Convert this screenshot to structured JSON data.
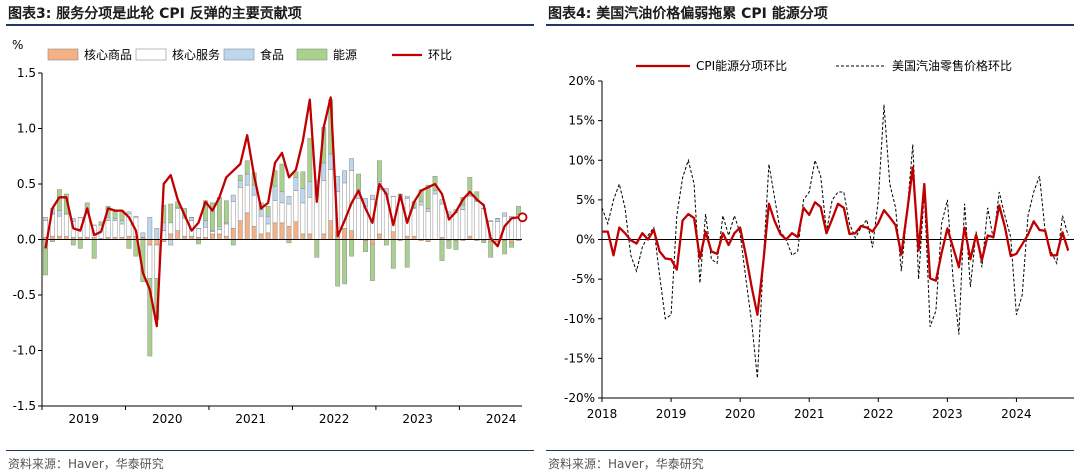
{
  "charts": [
    {
      "title": "图表3:  服务分项是此轮 CPI 反弹的主要贡献项",
      "source": "资料来源：Haver，华泰研究"
    },
    {
      "title": "图表4:  美国汽油价格偏弱拖累 CPI 能源分项",
      "source": "资料来源：Haver，华泰研究"
    }
  ],
  "colors": {
    "core_goods": "#f4b183",
    "core_services": "#ffffff",
    "food": "#bdd7ee",
    "energy": "#a9d18e",
    "headline": "#c00000",
    "gasoline": "#000000",
    "title_rule": "#1f3864"
  },
  "chart_data": [
    {
      "type": "bar",
      "stacked": true,
      "unit_label": "%",
      "ylim": [
        -1.5,
        1.5
      ],
      "yticks": [
        "1.5",
        "1.0",
        "0.5",
        "0.0",
        "-0.5",
        "-1.0",
        "-1.5"
      ],
      "ytick_values": [
        1.5,
        1.0,
        0.5,
        0.0,
        -0.5,
        -1.0,
        -1.5
      ],
      "xtick_labels": [
        "2019",
        "2020",
        "2021",
        "2022",
        "2023",
        "2024"
      ],
      "x_start": "2019-01",
      "months": 69,
      "legend_position": "top",
      "series": [
        {
          "name": "核心商品",
          "kind": "bar",
          "values": [
            0.02,
            0.03,
            0.03,
            0.03,
            0.02,
            0.02,
            0.02,
            0.02,
            0.01,
            0.02,
            0.02,
            0.02,
            0.03,
            0.03,
            0.02,
            -0.05,
            -0.05,
            -0.02,
            0.05,
            0.08,
            0.03,
            0.03,
            0.02,
            0.02,
            0.05,
            0.05,
            0.03,
            0.1,
            0.17,
            0.24,
            0.12,
            0.05,
            0.06,
            0.15,
            0.15,
            0.12,
            0.16,
            0.05,
            0.05,
            0.0,
            0.05,
            0.17,
            0.07,
            0.1,
            0.08,
            0.0,
            -0.01,
            -0.04,
            0.05,
            0.0,
            0.07,
            -0.01,
            0.03,
            0.03,
            -0.01,
            -0.02,
            0.0,
            0.02,
            -0.01,
            -0.01,
            -0.01,
            0.03,
            -0.01,
            -0.01,
            -0.02,
            -0.02,
            -0.01,
            -0.03,
            -0.01
          ]
        },
        {
          "name": "核心服务",
          "kind": "bar",
          "values": [
            0.15,
            0.2,
            0.18,
            0.2,
            0.14,
            0.18,
            0.22,
            0.11,
            0.12,
            0.15,
            0.15,
            0.12,
            0.2,
            0.17,
            0.0,
            -0.3,
            -0.3,
            0.08,
            0.1,
            0.2,
            0.16,
            0.14,
            0.08,
            0.09,
            0.02,
            0.04,
            0.11,
            0.24,
            0.3,
            0.25,
            0.28,
            0.16,
            0.08,
            0.2,
            0.18,
            0.2,
            0.28,
            0.28,
            0.33,
            0.4,
            0.48,
            0.46,
            0.36,
            0.41,
            0.54,
            0.37,
            0.3,
            0.36,
            0.4,
            0.41,
            0.32,
            0.36,
            0.34,
            0.25,
            0.31,
            0.25,
            0.41,
            0.3,
            0.22,
            0.24,
            0.27,
            0.36,
            0.34,
            0.28,
            0.16,
            0.16,
            0.21,
            0.19,
            0.22
          ]
        },
        {
          "name": "食品",
          "kind": "bar",
          "values": [
            0.03,
            0.05,
            0.05,
            0.0,
            0.03,
            0.0,
            0.03,
            0.0,
            0.0,
            0.03,
            0.02,
            0.03,
            0.02,
            0.01,
            0.04,
            0.2,
            0.1,
            0.07,
            -0.05,
            0.01,
            0.02,
            0.03,
            0.0,
            0.06,
            0.01,
            0.03,
            0.01,
            0.06,
            0.06,
            0.1,
            0.09,
            0.06,
            0.07,
            0.13,
            0.1,
            0.07,
            0.12,
            0.13,
            0.14,
            0.13,
            0.16,
            0.14,
            0.14,
            0.11,
            0.11,
            0.08,
            0.07,
            0.04,
            0.07,
            0.05,
            0.0,
            0.0,
            0.02,
            0.01,
            0.03,
            0.03,
            0.03,
            0.04,
            0.03,
            0.03,
            0.04,
            0.01,
            0.01,
            0.0,
            0.01,
            0.03,
            0.03,
            0.02,
            0.01
          ]
        },
        {
          "name": "能源",
          "kind": "bar",
          "values": [
            -0.32,
            -0.02,
            0.19,
            0.18,
            -0.05,
            -0.08,
            0.06,
            -0.17,
            0.03,
            0.1,
            0.06,
            0.09,
            -0.08,
            -0.15,
            -0.38,
            -0.7,
            -0.37,
            0.16,
            0.17,
            0.05,
            0.07,
            0.0,
            -0.04,
            0.18,
            0.25,
            0.26,
            0.2,
            -0.05,
            0.05,
            0.12,
            0.11,
            0.06,
            0.09,
            0.14,
            0.25,
            -0.03,
            0.05,
            0.15,
            0.39,
            -0.16,
            0.32,
            0.49,
            -0.42,
            -0.4,
            -0.15,
            0.14,
            -0.1,
            -0.33,
            0.19,
            -0.05,
            -0.26,
            0.05,
            -0.25,
            0.05,
            0.11,
            0.21,
            0.13,
            -0.19,
            -0.07,
            -0.08,
            0.07,
            0.16,
            0.08,
            -0.02,
            -0.14,
            0.0,
            -0.12,
            -0.04,
            0.07
          ]
        },
        {
          "name": "环比",
          "kind": "line",
          "values": [
            -0.08,
            0.28,
            0.38,
            0.38,
            0.1,
            0.08,
            0.28,
            0.04,
            0.07,
            0.28,
            0.26,
            0.26,
            0.2,
            0.08,
            -0.3,
            -0.45,
            -0.78,
            0.5,
            0.58,
            0.36,
            0.22,
            0.08,
            0.15,
            0.34,
            0.26,
            0.38,
            0.56,
            0.62,
            0.68,
            0.94,
            0.57,
            0.28,
            0.33,
            0.69,
            0.78,
            0.56,
            0.63,
            0.89,
            1.26,
            0.34,
            1.01,
            1.28,
            0.03,
            0.17,
            0.33,
            0.44,
            0.28,
            0.15,
            0.5,
            0.41,
            0.13,
            0.4,
            0.15,
            0.34,
            0.44,
            0.47,
            0.5,
            0.41,
            0.18,
            0.25,
            0.36,
            0.43,
            0.36,
            0.31,
            0.01,
            -0.06,
            0.12,
            0.19,
            0.2
          ]
        }
      ]
    },
    {
      "type": "line",
      "ylim": [
        -0.2,
        0.2
      ],
      "yticks": [
        "20%",
        "15%",
        "10%",
        "5%",
        "0%",
        "-5%",
        "-10%",
        "-15%",
        "-20%"
      ],
      "ytick_values": [
        0.2,
        0.15,
        0.1,
        0.05,
        0.0,
        -0.05,
        -0.1,
        -0.15,
        -0.2
      ],
      "xtick_labels": [
        "2018",
        "2019",
        "2020",
        "2021",
        "2022",
        "2023",
        "2024"
      ],
      "x_start": "2018-01",
      "months": 82,
      "legend_position": "top",
      "series": [
        {
          "name": "CPI能源分项环比",
          "style": "solid",
          "values": [
            0.01,
            0.01,
            -0.02,
            0.015,
            0.008,
            -0.001,
            -0.005,
            0.008,
            0.0,
            0.012,
            -0.015,
            -0.024,
            -0.025,
            -0.038,
            0.024,
            0.032,
            0.027,
            -0.024,
            0.01,
            -0.015,
            -0.018,
            0.008,
            -0.007,
            0.008,
            0.015,
            -0.02,
            -0.06,
            -0.095,
            -0.03,
            0.045,
            0.023,
            0.007,
            0.0,
            0.008,
            0.003,
            0.04,
            0.031,
            0.047,
            0.041,
            0.008,
            0.026,
            0.045,
            0.04,
            0.007,
            0.008,
            0.017,
            0.015,
            0.01,
            0.021,
            0.037,
            0.028,
            0.018,
            -0.019,
            0.035,
            0.091,
            -0.014,
            0.07,
            -0.049,
            -0.052,
            -0.017,
            0.014,
            -0.01,
            -0.035,
            0.015,
            -0.025,
            0.006,
            -0.026,
            0.005,
            0.003,
            0.043,
            0.016,
            -0.021,
            -0.018,
            -0.006,
            0.006,
            0.023,
            0.012,
            0.011,
            -0.02,
            -0.02,
            0.009,
            -0.014
          ]
        },
        {
          "name": "美国汽油零售价格环比",
          "style": "dashed",
          "values": [
            0.04,
            0.02,
            0.05,
            0.07,
            0.04,
            -0.02,
            -0.04,
            -0.01,
            0.005,
            0.015,
            -0.045,
            -0.1,
            -0.095,
            0.03,
            0.078,
            0.1,
            0.07,
            -0.055,
            0.032,
            -0.025,
            -0.03,
            0.03,
            0.005,
            0.03,
            0.008,
            -0.05,
            -0.105,
            -0.175,
            -0.03,
            0.095,
            0.052,
            0.01,
            0.0,
            -0.02,
            -0.015,
            0.05,
            0.06,
            0.1,
            0.08,
            0.01,
            0.05,
            0.06,
            0.06,
            0.02,
            0.002,
            0.015,
            0.025,
            -0.01,
            0.05,
            0.17,
            0.07,
            0.04,
            -0.04,
            0.035,
            0.12,
            -0.05,
            0.06,
            -0.11,
            -0.09,
            0.02,
            0.05,
            -0.05,
            -0.12,
            0.045,
            -0.06,
            0.01,
            -0.035,
            0.04,
            0.0,
            0.06,
            0.03,
            0.003,
            -0.095,
            -0.07,
            0.03,
            0.06,
            0.08,
            0.01,
            -0.015,
            -0.03,
            0.03,
            0.005
          ]
        }
      ]
    }
  ]
}
